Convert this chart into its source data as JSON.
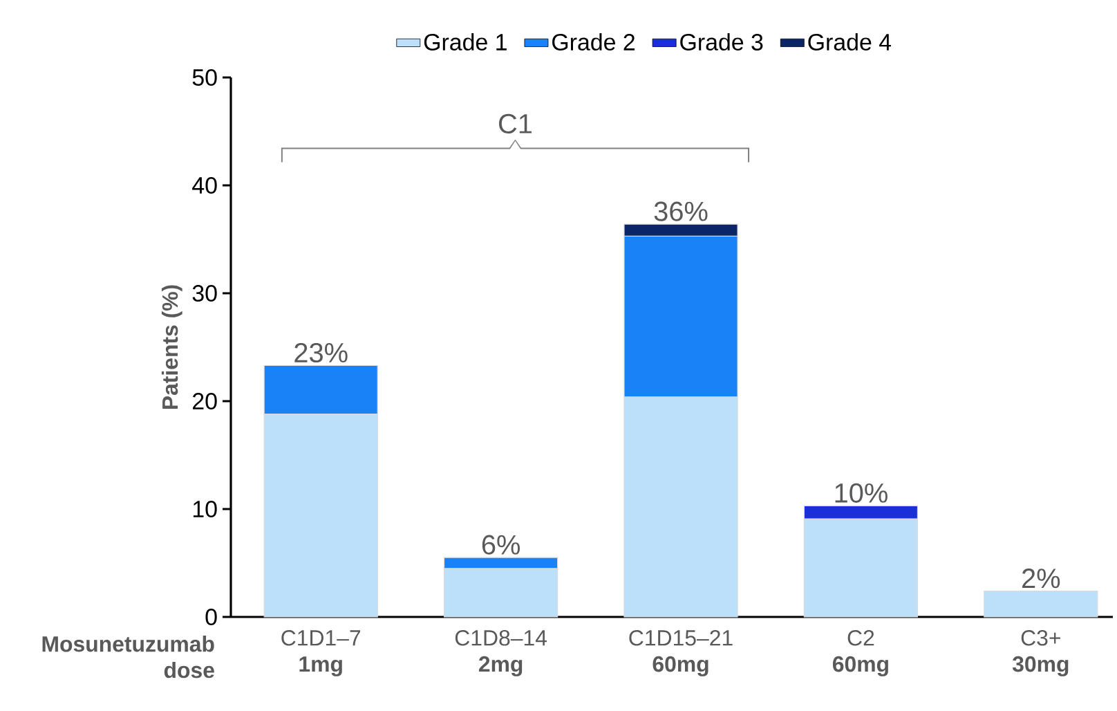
{
  "chart_data": {
    "type": "bar",
    "stacked": true,
    "xlabel": "Mosunetuzumab dose",
    "ylabel": "Patients (%)",
    "categories": [
      "C1D1–7 **1mg**",
      "C1D8–14 **2mg**",
      "C1D15–21 **60mg**",
      "C2 **60mg**",
      "C3+ **30mg**"
    ],
    "series": [
      {
        "name": "Grade 1",
        "color": "#bde0fa",
        "values": [
          18.8,
          4.5,
          20.4,
          9.1,
          2.4
        ]
      },
      {
        "name": "Grade 2",
        "color": "#1a82f7",
        "values": [
          4.5,
          1.0,
          14.9,
          null,
          null
        ]
      },
      {
        "name": "Grade 3",
        "color": "#1a2fd9",
        "values": [
          null,
          null,
          null,
          1.2,
          null
        ]
      },
      {
        "name": "Grade 4",
        "color": "#0b2566",
        "values": [
          null,
          null,
          1.1,
          null,
          null
        ]
      }
    ],
    "totals": [
      "23%",
      "6%",
      "36%",
      "10%",
      "2%"
    ],
    "annotations": [
      "C1"
    ],
    "ylim": [
      0,
      50
    ],
    "yticks": [
      0,
      10,
      20,
      30,
      40,
      50
    ],
    "legend": "top",
    "grid": false
  }
}
